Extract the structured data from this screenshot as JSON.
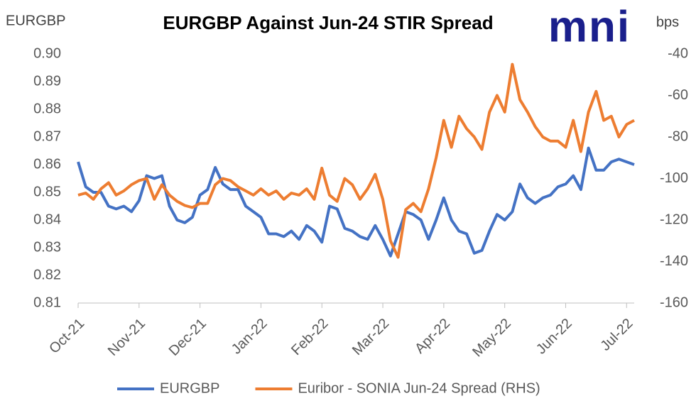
{
  "chart_data": {
    "type": "line",
    "title": "EURGBP Against Jun-24 STIR Spread",
    "logo": "mni",
    "y_label": "EURGBP",
    "y2_label": "bps",
    "categories": [
      "Oct-21",
      null,
      null,
      null,
      null,
      null,
      null,
      null,
      "Nov-21",
      null,
      null,
      null,
      null,
      null,
      null,
      null,
      "Dec-21",
      null,
      null,
      null,
      null,
      null,
      null,
      null,
      "Jan-22",
      null,
      null,
      null,
      null,
      null,
      null,
      null,
      "Feb-22",
      null,
      null,
      null,
      null,
      null,
      null,
      null,
      "Mar-22",
      null,
      null,
      null,
      null,
      null,
      null,
      null,
      "Apr-22",
      null,
      null,
      null,
      null,
      null,
      null,
      null,
      "May-22",
      null,
      null,
      null,
      null,
      null,
      null,
      null,
      "Jun-22",
      null,
      null,
      null,
      null,
      null,
      null,
      null,
      "Jul-22",
      null
    ],
    "series": [
      {
        "name": "EURGBP",
        "color": "#4472c4",
        "values": [
          0.861,
          0.852,
          0.85,
          0.85,
          0.845,
          0.844,
          0.845,
          0.843,
          0.847,
          0.856,
          0.855,
          0.856,
          0.845,
          0.84,
          0.839,
          0.841,
          0.849,
          0.851,
          0.859,
          0.853,
          0.851,
          0.851,
          0.845,
          0.843,
          0.841,
          0.835,
          0.835,
          0.834,
          0.836,
          0.833,
          0.838,
          0.836,
          0.832,
          0.845,
          0.844,
          0.837,
          0.836,
          0.834,
          0.833,
          0.838,
          0.833,
          0.827,
          0.835,
          0.843,
          0.842,
          0.84,
          0.833,
          0.84,
          0.848,
          0.84,
          0.836,
          0.835,
          0.828,
          0.829,
          0.836,
          0.842,
          0.84,
          0.843,
          0.853,
          0.848,
          0.846,
          0.848,
          0.849,
          0.852,
          0.853,
          0.856,
          0.851,
          0.866,
          0.858,
          0.858,
          0.861,
          0.862,
          0.861,
          0.86
        ]
      },
      {
        "name": "Euribor - SONIA Jun-24 Spread (RHS)",
        "color": "#ed7d31",
        "axis": "y2",
        "values": [
          -108,
          -107,
          -110,
          -105,
          -102,
          -108,
          -106,
          -103,
          -101,
          -100,
          -110,
          -103,
          -108,
          -111,
          -113,
          -114,
          -112,
          -112,
          -103,
          -100,
          -101,
          -104,
          -106,
          -108,
          -105,
          -108,
          -106,
          -110,
          -107,
          -108,
          -105,
          -110,
          -95,
          -108,
          -111,
          -100,
          -103,
          -110,
          -105,
          -98,
          -110,
          -130,
          -138,
          -115,
          -112,
          -116,
          -105,
          -90,
          -72,
          -85,
          -70,
          -76,
          -80,
          -86,
          -68,
          -60,
          -68,
          -45,
          -62,
          -68,
          -75,
          -80,
          -82,
          -82,
          -85,
          -72,
          -87,
          -68,
          -58,
          -72,
          -70,
          -80,
          -74,
          -72
        ]
      }
    ],
    "ylim": [
      0.81,
      0.9
    ],
    "yticks": [
      0.81,
      0.82,
      0.83,
      0.84,
      0.85,
      0.86,
      0.87,
      0.88,
      0.89,
      {
        "value": 0.9,
        "label": "0.90"
      }
    ],
    "y2lim": [
      -160,
      -40
    ],
    "y2ticks": [
      -160,
      -140,
      -120,
      -100,
      -80,
      -60,
      -40
    ],
    "grid": false
  }
}
